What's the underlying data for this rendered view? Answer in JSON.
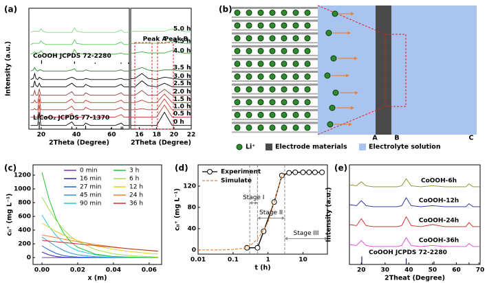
{
  "diagram": {
    "panel_label": "(b)",
    "li_label": "Li⁺",
    "electrode_label": "Electrode materials",
    "electrolyte_label": "Electrolyte solution",
    "points": [
      "A",
      "B",
      "C"
    ]
  },
  "chart_data": [
    {
      "type": "xrd",
      "panel_label": "(a)",
      "y_label": "Intensity (a.u.)",
      "x_label": "2Theta (Degree)",
      "x": [
        14,
        15.5,
        16.3,
        17,
        18,
        18.9,
        19.8,
        21,
        23,
        26,
        30,
        34,
        37.4,
        38.9,
        40,
        44,
        45.2,
        48,
        52,
        58,
        62,
        65.4,
        67,
        70
      ],
      "xlim": [
        13,
        70
      ],
      "xticks": [
        20,
        40,
        60
      ],
      "zoom_xlim": [
        15,
        22
      ],
      "zoom_xticks": [
        16,
        18,
        20,
        22
      ],
      "ylim": [
        0,
        100
      ],
      "peak_labels": [
        "Peak A",
        "Peak B"
      ],
      "series": [
        {
          "name": "0 h",
          "color": "#000000",
          "values": [
            3,
            3,
            3,
            3,
            3,
            14,
            3,
            3,
            3,
            3,
            3,
            3,
            6,
            3,
            3,
            3,
            5,
            3,
            3,
            3,
            3,
            5,
            3,
            3
          ]
        },
        {
          "name": "0.5 h",
          "color": "#c0392b",
          "values": [
            10,
            10,
            10,
            10,
            10,
            20,
            10,
            10,
            10,
            10,
            10,
            10,
            13,
            10,
            10,
            10,
            12,
            10,
            10,
            10,
            10,
            12,
            10,
            10
          ]
        },
        {
          "name": "1.0 h",
          "color": "#c0392b",
          "values": [
            16,
            16,
            17,
            16,
            16,
            25,
            16,
            16,
            16,
            16,
            16,
            16,
            19,
            16,
            16,
            16,
            18,
            16,
            16,
            16,
            16,
            18,
            16,
            16
          ]
        },
        {
          "name": "1.5 h",
          "color": "#c0392b",
          "values": [
            22,
            22,
            24,
            22,
            22,
            29,
            22,
            22,
            22,
            22,
            22,
            22,
            25,
            22,
            22,
            22,
            24,
            22,
            22,
            22,
            22,
            24,
            22,
            22
          ]
        },
        {
          "name": "2.0 h",
          "color": "#8b3a3a",
          "values": [
            28,
            28,
            32,
            28,
            28,
            33,
            28,
            28,
            28,
            28,
            28,
            28,
            31,
            28,
            28,
            28,
            30,
            28,
            28,
            28,
            28,
            30,
            28,
            28
          ]
        },
        {
          "name": "2.5 h",
          "color": "#000000",
          "values": [
            35,
            35,
            40,
            36,
            35,
            38,
            35,
            35,
            35,
            35,
            35,
            35,
            38,
            36,
            35,
            35,
            37,
            35,
            35,
            35,
            35,
            37,
            35,
            35
          ]
        },
        {
          "name": "3.0 h",
          "color": "#000000",
          "values": [
            41,
            42,
            46,
            42,
            41,
            43,
            42,
            41,
            41,
            41,
            41,
            41,
            43,
            42,
            41,
            41,
            42,
            41,
            41,
            41,
            41,
            42,
            41,
            41
          ]
        },
        {
          "name": "3.5 h",
          "color": "#2e8b2e",
          "values": [
            48,
            49,
            51,
            49,
            48,
            49,
            49,
            48,
            48,
            48,
            48,
            48,
            49,
            50,
            48,
            48,
            49,
            48,
            48,
            48,
            48,
            49,
            48,
            48
          ]
        },
        {
          "name": "4.0 h",
          "color": "#3cb83c",
          "values": [
            62,
            63,
            64,
            63,
            63,
            63,
            65,
            63,
            62,
            62,
            62,
            62,
            62,
            66,
            63,
            62,
            62,
            62,
            62,
            62,
            62,
            63,
            62,
            62
          ]
        },
        {
          "name": "4.5 h",
          "color": "#55cc55",
          "values": [
            70,
            71,
            71,
            71,
            71,
            71,
            73,
            71,
            70,
            70,
            70,
            70,
            70,
            74,
            71,
            70,
            70,
            70,
            70,
            70,
            70,
            72,
            70,
            70
          ]
        },
        {
          "name": "5.0 h",
          "color": "#7ee07e",
          "values": [
            80,
            81,
            81,
            81,
            81,
            81,
            83,
            81,
            80,
            80,
            80,
            80,
            80,
            84,
            81,
            80,
            80,
            80,
            80,
            80,
            80,
            82,
            80,
            80
          ]
        }
      ],
      "references": [
        {
          "name": "CoOOH JCPDS 72-2280",
          "color": "#000000",
          "base": 54,
          "positions": [
            20.2,
            38.9,
            50.6,
            65.3,
            69.5
          ],
          "heights": [
            3,
            2,
            1,
            1,
            1
          ]
        },
        {
          "name": "LiCoO₂ JCPDS 77-1370",
          "color": "#000000",
          "base": 0,
          "positions": [
            18.9,
            37.4,
            45.2,
            59.6,
            65.4,
            66.3
          ],
          "heights": [
            6,
            2,
            3,
            1,
            2,
            2
          ]
        }
      ]
    },
    {
      "type": "line",
      "panel_label": "(c)",
      "y_label": "cₗᵢ⁺ (mg L⁻¹)",
      "x_label": "x (m)",
      "x": [
        0,
        0.004,
        0.008,
        0.012,
        0.016,
        0.02,
        0.03,
        0.04,
        0.05,
        0.065
      ],
      "xlim": [
        -0.005,
        0.067
      ],
      "xticks": [
        {
          "value": 0,
          "label": "0.00"
        },
        {
          "value": 0.02,
          "label": "0.02"
        },
        {
          "value": 0.04,
          "label": "0.04"
        },
        {
          "value": 0.06,
          "label": "0.06"
        }
      ],
      "ylim": [
        -100,
        1350
      ],
      "yticks": [
        0,
        200,
        400,
        600,
        800,
        1000,
        1200
      ],
      "series": [
        {
          "name": "0 min",
          "color": "#7b2fbe",
          "values": [
            0,
            0,
            0,
            0,
            0,
            0,
            0,
            0,
            0,
            0
          ]
        },
        {
          "name": "16 min",
          "color": "#2a2ab0",
          "values": [
            80,
            40,
            15,
            5,
            2,
            0,
            0,
            0,
            0,
            0
          ]
        },
        {
          "name": "27 min",
          "color": "#1e60d0",
          "values": [
            170,
            110,
            60,
            30,
            15,
            8,
            2,
            0,
            0,
            0
          ]
        },
        {
          "name": "45 min",
          "color": "#2f95d8",
          "values": [
            300,
            230,
            160,
            105,
            65,
            40,
            12,
            4,
            0,
            0
          ]
        },
        {
          "name": "90 min",
          "color": "#20c8d8",
          "values": [
            620,
            450,
            320,
            220,
            150,
            100,
            40,
            15,
            5,
            0
          ]
        },
        {
          "name": "3 h",
          "color": "#22c23a",
          "values": [
            1240,
            850,
            560,
            360,
            230,
            150,
            50,
            15,
            5,
            0
          ]
        },
        {
          "name": "6 h",
          "color": "#9fe04a",
          "values": [
            880,
            700,
            540,
            410,
            310,
            235,
            115,
            55,
            25,
            8
          ]
        },
        {
          "name": "12 h",
          "color": "#e0d020",
          "values": [
            500,
            440,
            380,
            330,
            285,
            245,
            170,
            120,
            85,
            50
          ]
        },
        {
          "name": "24 h",
          "color": "#f08030",
          "values": [
            330,
            310,
            290,
            270,
            250,
            232,
            190,
            155,
            125,
            90
          ]
        },
        {
          "name": "36 h",
          "color": "#c83030",
          "values": [
            250,
            240,
            230,
            220,
            210,
            200,
            175,
            150,
            125,
            95
          ]
        }
      ]
    },
    {
      "type": "logline",
      "panel_label": "(d)",
      "y_label": "cₗᵢ⁺ (mg L⁻¹)",
      "x_label": "t (h)",
      "xlim": [
        0.01,
        50
      ],
      "xticks": [
        0.01,
        0.1,
        1,
        10
      ],
      "ylim": [
        -8,
        160
      ],
      "yticks": [
        0,
        40,
        80,
        120
      ],
      "stage_lines": [
        0.3,
        0.5,
        3
      ],
      "stage_labels": [
        "Stage I",
        "Stage II",
        "Stage III"
      ],
      "series": [
        {
          "name": "Experiment",
          "color": "#000000",
          "x": [
            0.25,
            0.5,
            0.75,
            1.5,
            2.5,
            4,
            6,
            10,
            15,
            22,
            35
          ],
          "values": [
            4,
            4,
            35,
            90,
            140,
            145,
            146,
            146,
            146,
            146,
            146
          ]
        },
        {
          "name": "Simulate",
          "color": "#f08030",
          "x": [
            0.01,
            0.05,
            0.1,
            0.2,
            0.3,
            0.5,
            0.75,
            1,
            1.5,
            2,
            2.5,
            3
          ],
          "values": [
            0,
            0,
            1,
            3,
            8,
            20,
            38,
            52,
            90,
            118,
            140,
            145
          ]
        }
      ]
    },
    {
      "type": "xrd",
      "panel_label": "(e)",
      "y_label": "Intensity (a.u.)",
      "x_label": "2Theat (Degree)",
      "x": [
        15,
        18,
        20,
        22,
        25,
        30,
        35,
        37,
        38.9,
        41,
        45,
        50,
        55,
        60,
        64,
        65.3,
        67,
        70
      ],
      "xlim": [
        15,
        70
      ],
      "xticks": [
        20,
        30,
        40,
        50,
        60,
        70
      ],
      "ylim": [
        0,
        100
      ],
      "series": [
        {
          "name": "CoOOH-6h",
          "color": "#8a8a20",
          "values": [
            80,
            79,
            83,
            79,
            78,
            78,
            78,
            79,
            86,
            79,
            78,
            79,
            78,
            78,
            78,
            81,
            78,
            78
          ]
        },
        {
          "name": "CoOOH-12h",
          "color": "#1a2aa0",
          "values": [
            60,
            59,
            64,
            59,
            58,
            58,
            58,
            59,
            67,
            59,
            58,
            59,
            58,
            58,
            58,
            61,
            58,
            58
          ]
        },
        {
          "name": "CoOOH-24h",
          "color": "#d02020",
          "values": [
            40,
            39,
            46,
            39,
            38,
            38,
            38,
            39,
            48,
            39,
            38,
            40,
            38,
            38,
            38,
            42,
            38,
            38
          ]
        },
        {
          "name": "CoOOH-36h",
          "color": "#e040e0",
          "values": [
            20,
            19,
            24,
            19,
            18,
            18,
            18,
            19,
            27,
            19,
            18,
            19,
            18,
            18,
            18,
            21,
            18,
            18
          ]
        }
      ],
      "references": [
        {
          "name": "CoOOH JCPDS 72-2280",
          "color": "#1a2060",
          "base": 0,
          "positions": [
            20.2,
            38.9,
            50.6,
            65.3,
            69.5
          ],
          "heights": [
            8,
            6,
            3,
            2,
            2
          ]
        }
      ]
    }
  ]
}
